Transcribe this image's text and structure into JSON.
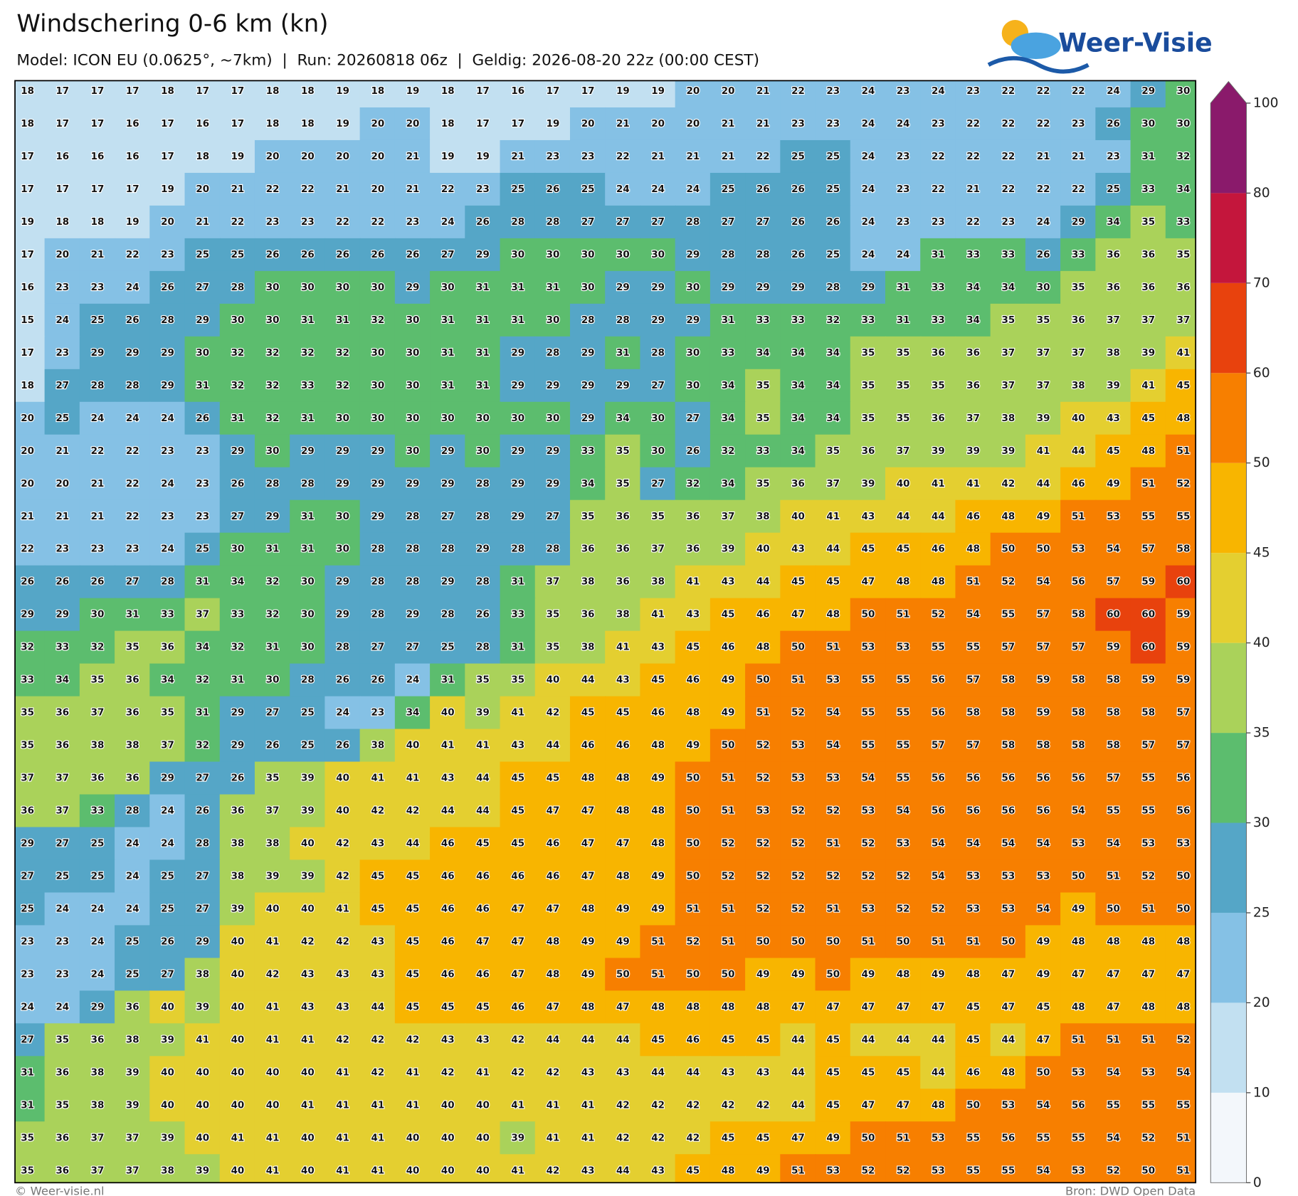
{
  "header": {
    "title": "Windschering 0-6 km (kn)",
    "subtitle": "Model: ICON EU (0.0625°, ~7km)  |  Run: 20260818 06z  |  Geldig: 2026-08-20 22z (00:00 CEST)",
    "logo": "Weer-Visie"
  },
  "footer": {
    "copyright": "© Weer-visie.nl",
    "source": "Bron: DWD Open Data"
  },
  "colorbar": {
    "levels": [
      0,
      10,
      20,
      25,
      30,
      35,
      40,
      45,
      50,
      60,
      70,
      80,
      100
    ],
    "colors": [
      "#f3f7fb",
      "#c2e0f1",
      "#85c1e5",
      "#55a6c7",
      "#5cbd6e",
      "#aad25a",
      "#e4cf30",
      "#f8b500",
      "#f77f00",
      "#e8420d",
      "#c4163c",
      "#8a1a6b"
    ],
    "extend_max": true
  },
  "map": {
    "grid": [
      [
        18,
        17,
        17,
        17,
        18,
        17,
        17,
        18,
        18,
        19,
        18,
        19,
        18,
        17,
        16,
        17,
        17,
        19,
        19,
        20,
        20,
        21,
        22,
        23,
        24,
        23,
        24,
        23,
        22,
        22,
        22,
        24,
        29,
        30
      ],
      [
        18,
        17,
        17,
        16,
        17,
        16,
        17,
        18,
        18,
        19,
        20,
        20,
        18,
        17,
        17,
        19,
        20,
        21,
        20,
        20,
        21,
        21,
        23,
        23,
        24,
        24,
        23,
        22,
        22,
        22,
        23,
        26,
        30,
        30
      ],
      [
        17,
        16,
        16,
        16,
        17,
        18,
        19,
        20,
        20,
        20,
        20,
        21,
        19,
        19,
        21,
        23,
        23,
        22,
        21,
        21,
        21,
        22,
        25,
        25,
        24,
        23,
        22,
        22,
        22,
        21,
        21,
        23,
        31,
        32
      ],
      [
        17,
        17,
        17,
        17,
        19,
        20,
        21,
        22,
        22,
        21,
        20,
        21,
        22,
        23,
        25,
        26,
        25,
        24,
        24,
        24,
        25,
        26,
        26,
        25,
        24,
        23,
        22,
        21,
        22,
        22,
        22,
        25,
        33,
        34
      ],
      [
        19,
        18,
        18,
        19,
        20,
        21,
        22,
        23,
        23,
        22,
        22,
        23,
        24,
        26,
        28,
        28,
        27,
        27,
        27,
        28,
        27,
        27,
        26,
        26,
        24,
        23,
        23,
        22,
        23,
        24,
        29,
        34,
        35,
        33
      ],
      [
        17,
        20,
        21,
        22,
        23,
        25,
        25,
        26,
        26,
        26,
        26,
        26,
        27,
        29,
        30,
        30,
        30,
        30,
        30,
        29,
        28,
        28,
        26,
        25,
        24,
        24,
        31,
        33,
        33,
        26,
        33,
        36,
        36,
        35
      ],
      [
        16,
        23,
        23,
        24,
        26,
        27,
        28,
        30,
        30,
        30,
        30,
        29,
        30,
        31,
        31,
        31,
        30,
        29,
        29,
        30,
        29,
        29,
        29,
        28,
        29,
        31,
        33,
        34,
        34,
        30,
        35,
        36,
        36,
        36
      ],
      [
        15,
        24,
        25,
        26,
        28,
        29,
        30,
        30,
        31,
        31,
        32,
        30,
        31,
        31,
        31,
        30,
        28,
        28,
        29,
        29,
        31,
        33,
        33,
        32,
        33,
        31,
        33,
        34,
        35,
        35,
        36,
        37,
        37,
        37
      ],
      [
        17,
        23,
        29,
        29,
        29,
        30,
        32,
        32,
        32,
        32,
        30,
        30,
        31,
        31,
        29,
        28,
        29,
        31,
        28,
        30,
        33,
        34,
        34,
        34,
        35,
        35,
        36,
        36,
        37,
        37,
        37,
        38,
        39,
        41
      ],
      [
        18,
        27,
        28,
        28,
        29,
        31,
        32,
        32,
        33,
        32,
        30,
        30,
        31,
        31,
        29,
        29,
        29,
        29,
        27,
        30,
        34,
        35,
        34,
        34,
        35,
        35,
        35,
        36,
        37,
        37,
        38,
        39,
        41,
        45
      ],
      [
        20,
        25,
        24,
        24,
        24,
        26,
        31,
        32,
        31,
        30,
        30,
        30,
        30,
        30,
        30,
        30,
        29,
        34,
        30,
        27,
        34,
        35,
        34,
        34,
        35,
        35,
        36,
        37,
        38,
        39,
        40,
        43,
        45,
        48
      ],
      [
        20,
        21,
        22,
        22,
        23,
        23,
        29,
        30,
        29,
        29,
        29,
        30,
        29,
        30,
        29,
        29,
        33,
        35,
        30,
        26,
        32,
        33,
        34,
        35,
        36,
        37,
        39,
        39,
        39,
        41,
        44,
        45,
        48,
        51
      ],
      [
        20,
        20,
        21,
        22,
        24,
        23,
        26,
        28,
        28,
        29,
        29,
        29,
        29,
        28,
        29,
        29,
        34,
        35,
        27,
        32,
        34,
        35,
        36,
        37,
        39,
        40,
        41,
        41,
        42,
        44,
        46,
        49,
        51,
        52
      ],
      [
        21,
        21,
        21,
        22,
        23,
        23,
        27,
        29,
        31,
        30,
        29,
        28,
        27,
        28,
        29,
        27,
        35,
        36,
        35,
        36,
        37,
        38,
        40,
        41,
        43,
        44,
        44,
        46,
        48,
        49,
        51,
        53,
        55,
        55
      ],
      [
        22,
        23,
        23,
        23,
        24,
        25,
        30,
        31,
        31,
        30,
        28,
        28,
        28,
        29,
        28,
        28,
        36,
        36,
        37,
        36,
        39,
        40,
        43,
        44,
        45,
        45,
        46,
        48,
        50,
        50,
        53,
        54,
        57,
        58
      ],
      [
        26,
        26,
        26,
        27,
        28,
        31,
        34,
        32,
        30,
        29,
        28,
        28,
        29,
        28,
        31,
        37,
        38,
        36,
        38,
        41,
        43,
        44,
        45,
        45,
        47,
        48,
        48,
        51,
        52,
        54,
        56,
        57,
        59,
        60
      ],
      [
        29,
        29,
        30,
        31,
        33,
        37,
        33,
        32,
        30,
        29,
        28,
        29,
        28,
        26,
        33,
        35,
        36,
        38,
        41,
        43,
        45,
        46,
        47,
        48,
        50,
        51,
        52,
        54,
        55,
        57,
        58,
        60,
        60,
        59
      ],
      [
        32,
        33,
        32,
        35,
        36,
        34,
        32,
        31,
        30,
        28,
        27,
        27,
        25,
        28,
        31,
        35,
        38,
        41,
        43,
        45,
        46,
        48,
        50,
        51,
        53,
        53,
        55,
        55,
        57,
        57,
        57,
        59,
        60,
        59
      ],
      [
        33,
        34,
        35,
        36,
        34,
        32,
        31,
        30,
        28,
        26,
        26,
        24,
        31,
        35,
        35,
        40,
        44,
        43,
        45,
        46,
        49,
        50,
        51,
        53,
        55,
        55,
        56,
        57,
        58,
        59,
        58,
        58,
        59,
        59
      ],
      [
        35,
        36,
        37,
        36,
        35,
        31,
        29,
        27,
        25,
        24,
        23,
        34,
        40,
        39,
        41,
        42,
        45,
        45,
        46,
        48,
        49,
        51,
        52,
        54,
        55,
        55,
        56,
        58,
        58,
        59,
        58,
        58,
        58,
        57
      ],
      [
        35,
        36,
        38,
        38,
        37,
        32,
        29,
        26,
        25,
        26,
        38,
        40,
        41,
        41,
        43,
        44,
        46,
        46,
        48,
        49,
        50,
        52,
        53,
        54,
        55,
        55,
        57,
        57,
        58,
        58,
        58,
        58,
        57,
        57
      ],
      [
        37,
        37,
        36,
        36,
        29,
        27,
        26,
        35,
        39,
        40,
        41,
        41,
        43,
        44,
        45,
        45,
        48,
        48,
        49,
        50,
        51,
        52,
        53,
        53,
        54,
        55,
        56,
        56,
        56,
        56,
        56,
        57,
        55,
        56
      ],
      [
        36,
        37,
        33,
        28,
        24,
        26,
        36,
        37,
        39,
        40,
        42,
        42,
        44,
        44,
        45,
        47,
        47,
        48,
        48,
        50,
        51,
        53,
        52,
        52,
        53,
        54,
        56,
        56,
        56,
        56,
        54,
        55,
        55,
        56
      ],
      [
        29,
        27,
        25,
        24,
        24,
        28,
        38,
        38,
        40,
        42,
        43,
        44,
        46,
        45,
        45,
        46,
        47,
        47,
        48,
        50,
        52,
        52,
        52,
        51,
        52,
        53,
        54,
        54,
        54,
        54,
        53,
        54,
        53,
        53
      ],
      [
        27,
        25,
        25,
        24,
        25,
        27,
        38,
        39,
        39,
        42,
        45,
        45,
        46,
        46,
        46,
        46,
        47,
        48,
        49,
        50,
        52,
        52,
        52,
        52,
        52,
        52,
        54,
        53,
        53,
        53,
        50,
        51,
        52,
        50
      ],
      [
        25,
        24,
        24,
        24,
        25,
        27,
        39,
        40,
        40,
        41,
        45,
        45,
        46,
        46,
        47,
        47,
        48,
        49,
        49,
        51,
        51,
        52,
        52,
        51,
        53,
        52,
        52,
        53,
        53,
        54,
        49,
        50,
        51,
        50
      ],
      [
        23,
        23,
        24,
        25,
        26,
        29,
        40,
        41,
        42,
        42,
        43,
        45,
        46,
        47,
        47,
        48,
        49,
        49,
        51,
        52,
        51,
        50,
        50,
        50,
        51,
        50,
        51,
        51,
        50,
        49,
        48,
        48,
        48,
        48
      ],
      [
        23,
        23,
        24,
        25,
        27,
        38,
        40,
        42,
        43,
        43,
        43,
        45,
        46,
        46,
        47,
        48,
        49,
        50,
        51,
        50,
        50,
        49,
        49,
        50,
        49,
        48,
        49,
        48,
        47,
        49,
        47,
        47,
        47,
        47
      ],
      [
        24,
        24,
        29,
        36,
        40,
        39,
        40,
        41,
        43,
        43,
        44,
        45,
        45,
        45,
        46,
        47,
        48,
        47,
        48,
        48,
        48,
        48,
        47,
        47,
        47,
        47,
        47,
        45,
        47,
        45,
        48,
        47,
        48,
        48
      ],
      [
        27,
        35,
        36,
        38,
        39,
        41,
        40,
        41,
        41,
        42,
        42,
        42,
        43,
        43,
        42,
        44,
        44,
        44,
        45,
        46,
        45,
        45,
        44,
        45,
        44,
        44,
        44,
        45,
        44,
        47,
        51,
        51,
        51,
        52
      ],
      [
        31,
        36,
        38,
        39,
        40,
        40,
        40,
        40,
        40,
        41,
        42,
        41,
        42,
        41,
        42,
        42,
        43,
        43,
        44,
        44,
        43,
        43,
        44,
        45,
        45,
        45,
        44,
        46,
        48,
        50,
        53,
        54,
        53,
        54
      ],
      [
        31,
        35,
        38,
        39,
        40,
        40,
        40,
        40,
        41,
        41,
        41,
        41,
        40,
        40,
        41,
        41,
        41,
        42,
        42,
        42,
        42,
        42,
        44,
        45,
        47,
        47,
        48,
        50,
        53,
        54,
        56,
        55,
        55,
        55
      ],
      [
        35,
        36,
        37,
        37,
        39,
        40,
        41,
        41,
        40,
        41,
        41,
        40,
        40,
        40,
        39,
        41,
        41,
        42,
        42,
        42,
        45,
        45,
        47,
        49,
        50,
        51,
        53,
        55,
        56,
        55,
        55,
        54,
        52,
        51
      ],
      [
        35,
        36,
        37,
        37,
        38,
        39,
        40,
        41,
        40,
        41,
        41,
        40,
        40,
        40,
        41,
        42,
        43,
        44,
        43,
        45,
        48,
        49,
        51,
        53,
        52,
        52,
        53,
        55,
        55,
        54,
        53,
        52,
        50,
        51
      ]
    ]
  }
}
